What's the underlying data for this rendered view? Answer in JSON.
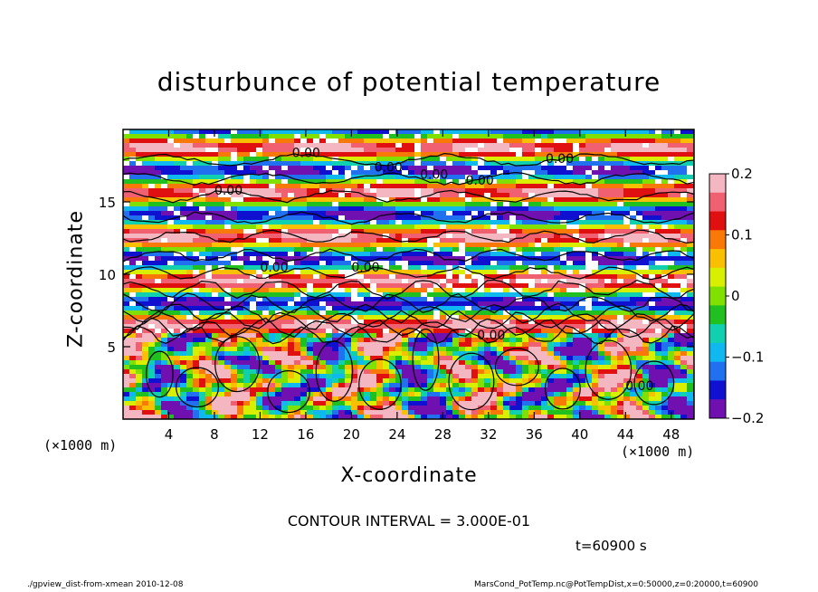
{
  "chart_data": {
    "type": "heatmap",
    "title": "disturbunce of potential temperature",
    "xlabel": "X-coordinate",
    "ylabel": "Z-coordinate",
    "x_unit": "(×1000 m)",
    "y_unit": "(×1000 m)",
    "x_ticks": [
      4,
      8,
      12,
      16,
      20,
      24,
      28,
      32,
      36,
      40,
      44,
      48
    ],
    "y_ticks": [
      5,
      10,
      15
    ],
    "xlim": [
      0,
      50
    ],
    "ylim": [
      0,
      20
    ],
    "colorbar": {
      "range": [
        -0.2,
        0.2
      ],
      "tick_labels": [
        "0.2",
        "0.1",
        "0",
        "−0.1",
        "−0.2"
      ],
      "tick_values": [
        0.2,
        0.1,
        0,
        -0.1,
        -0.2
      ],
      "colors": [
        "#f4b6c0",
        "#f06070",
        "#e01010",
        "#f87808",
        "#f8c000",
        "#d8f000",
        "#80e000",
        "#20c020",
        "#10d0b0",
        "#10b8f0",
        "#2070f0",
        "#1010d0",
        "#7010b0"
      ]
    },
    "contour_labels": [
      "0.00",
      "0.00",
      "0.00",
      "0.00",
      "0.00",
      "0.00",
      "0.00",
      "0.00",
      "0.00",
      "0.00"
    ],
    "contour_interval": "CONTOUR INTERVAL = 3.000E-01",
    "time": "t=60900 s"
  },
  "footer": {
    "left": "./gpview_dist-from-xmean   2010-12-08",
    "right": "MarsCond_PotTemp.nc@PotTempDist,x=0:50000,z=0:20000,t=60900"
  }
}
